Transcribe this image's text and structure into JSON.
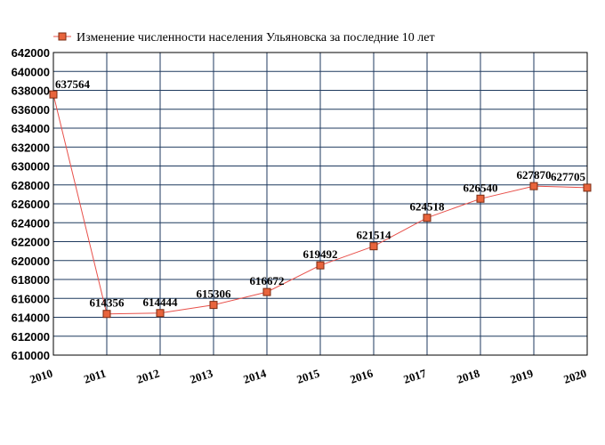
{
  "chart_data": {
    "type": "line",
    "title": "",
    "xlabel": "",
    "ylabel": "",
    "categories": [
      "2010",
      "2011",
      "2012",
      "2013",
      "2014",
      "2015",
      "2016",
      "2017",
      "2018",
      "2019",
      "2020"
    ],
    "series": [
      {
        "name": "Изменение численности населения Ульяновска за последние 10 лет",
        "values": [
          637564,
          614356,
          614444,
          615306,
          616672,
          619492,
          621514,
          624518,
          626540,
          627870,
          627705
        ],
        "labels": [
          "637564",
          "614356",
          "614444",
          "615306",
          "616672",
          "619492",
          "621514",
          "624518",
          "626540",
          "627870",
          "627705"
        ]
      }
    ],
    "ylim": [
      610000,
      642000
    ],
    "yticks": [
      610000,
      612000,
      614000,
      616000,
      618000,
      620000,
      622000,
      624000,
      626000,
      628000,
      630000,
      632000,
      634000,
      636000,
      638000,
      640000,
      642000
    ],
    "ytick_labels": [
      "610000",
      "612000",
      "614000",
      "616000",
      "618000",
      "620000",
      "622000",
      "624000",
      "626000",
      "628000",
      "630000",
      "632000",
      "634000",
      "636000",
      "638000",
      "640000",
      "642000"
    ],
    "grid": true,
    "legend_position": "top",
    "colors": {
      "line": "#e8504a",
      "marker_fill": "#e8643c",
      "marker_stroke": "#7a2a10",
      "grid": "#1f3a5f",
      "frame": "#000000"
    }
  }
}
